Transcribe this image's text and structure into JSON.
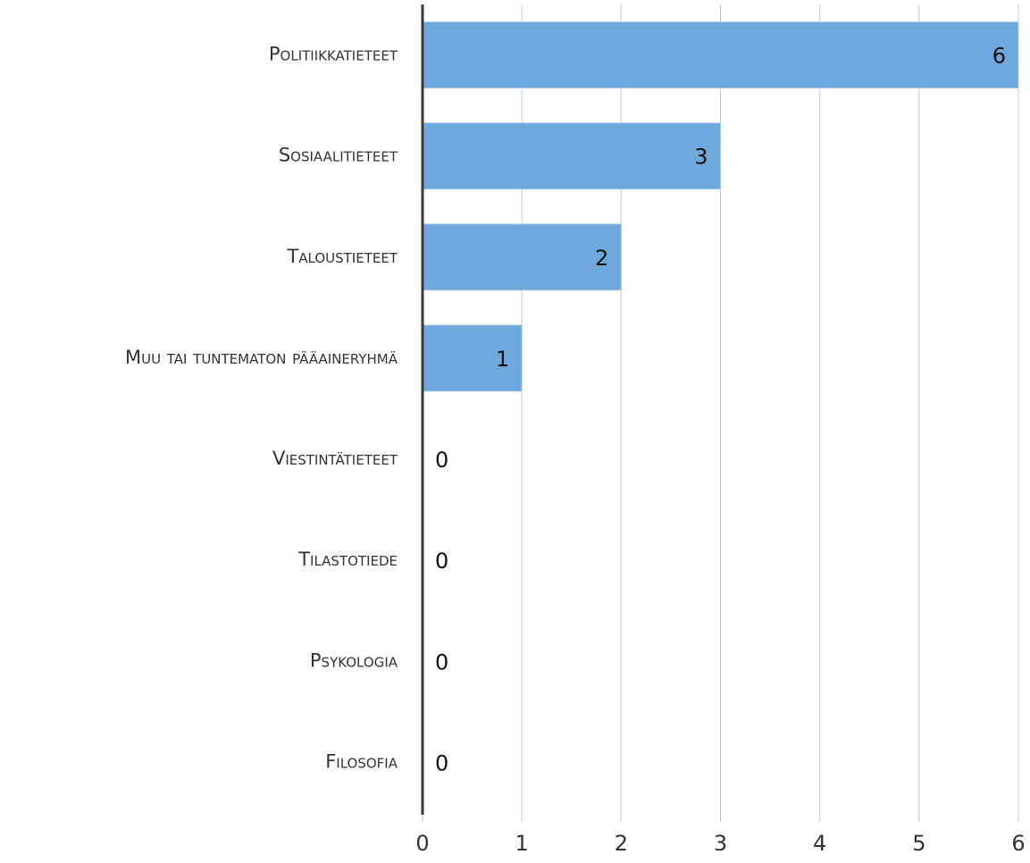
{
  "chart_data": {
    "type": "bar",
    "orientation": "horizontal",
    "categories": [
      "Politiikkatieteet",
      "Sosiaalitieteet",
      "Taloustieteet",
      "Muu tai tuntematon pääaineryhmä",
      "Viestintätieteet",
      "Tilastotiede",
      "Psykologia",
      "Filosofia"
    ],
    "values": [
      6,
      3,
      2,
      1,
      0,
      0,
      0,
      0
    ],
    "color": "#6fa8dc",
    "xlim": [
      0,
      6
    ],
    "xticks": [
      0,
      1,
      2,
      3,
      4,
      5,
      6
    ],
    "grid": true
  }
}
